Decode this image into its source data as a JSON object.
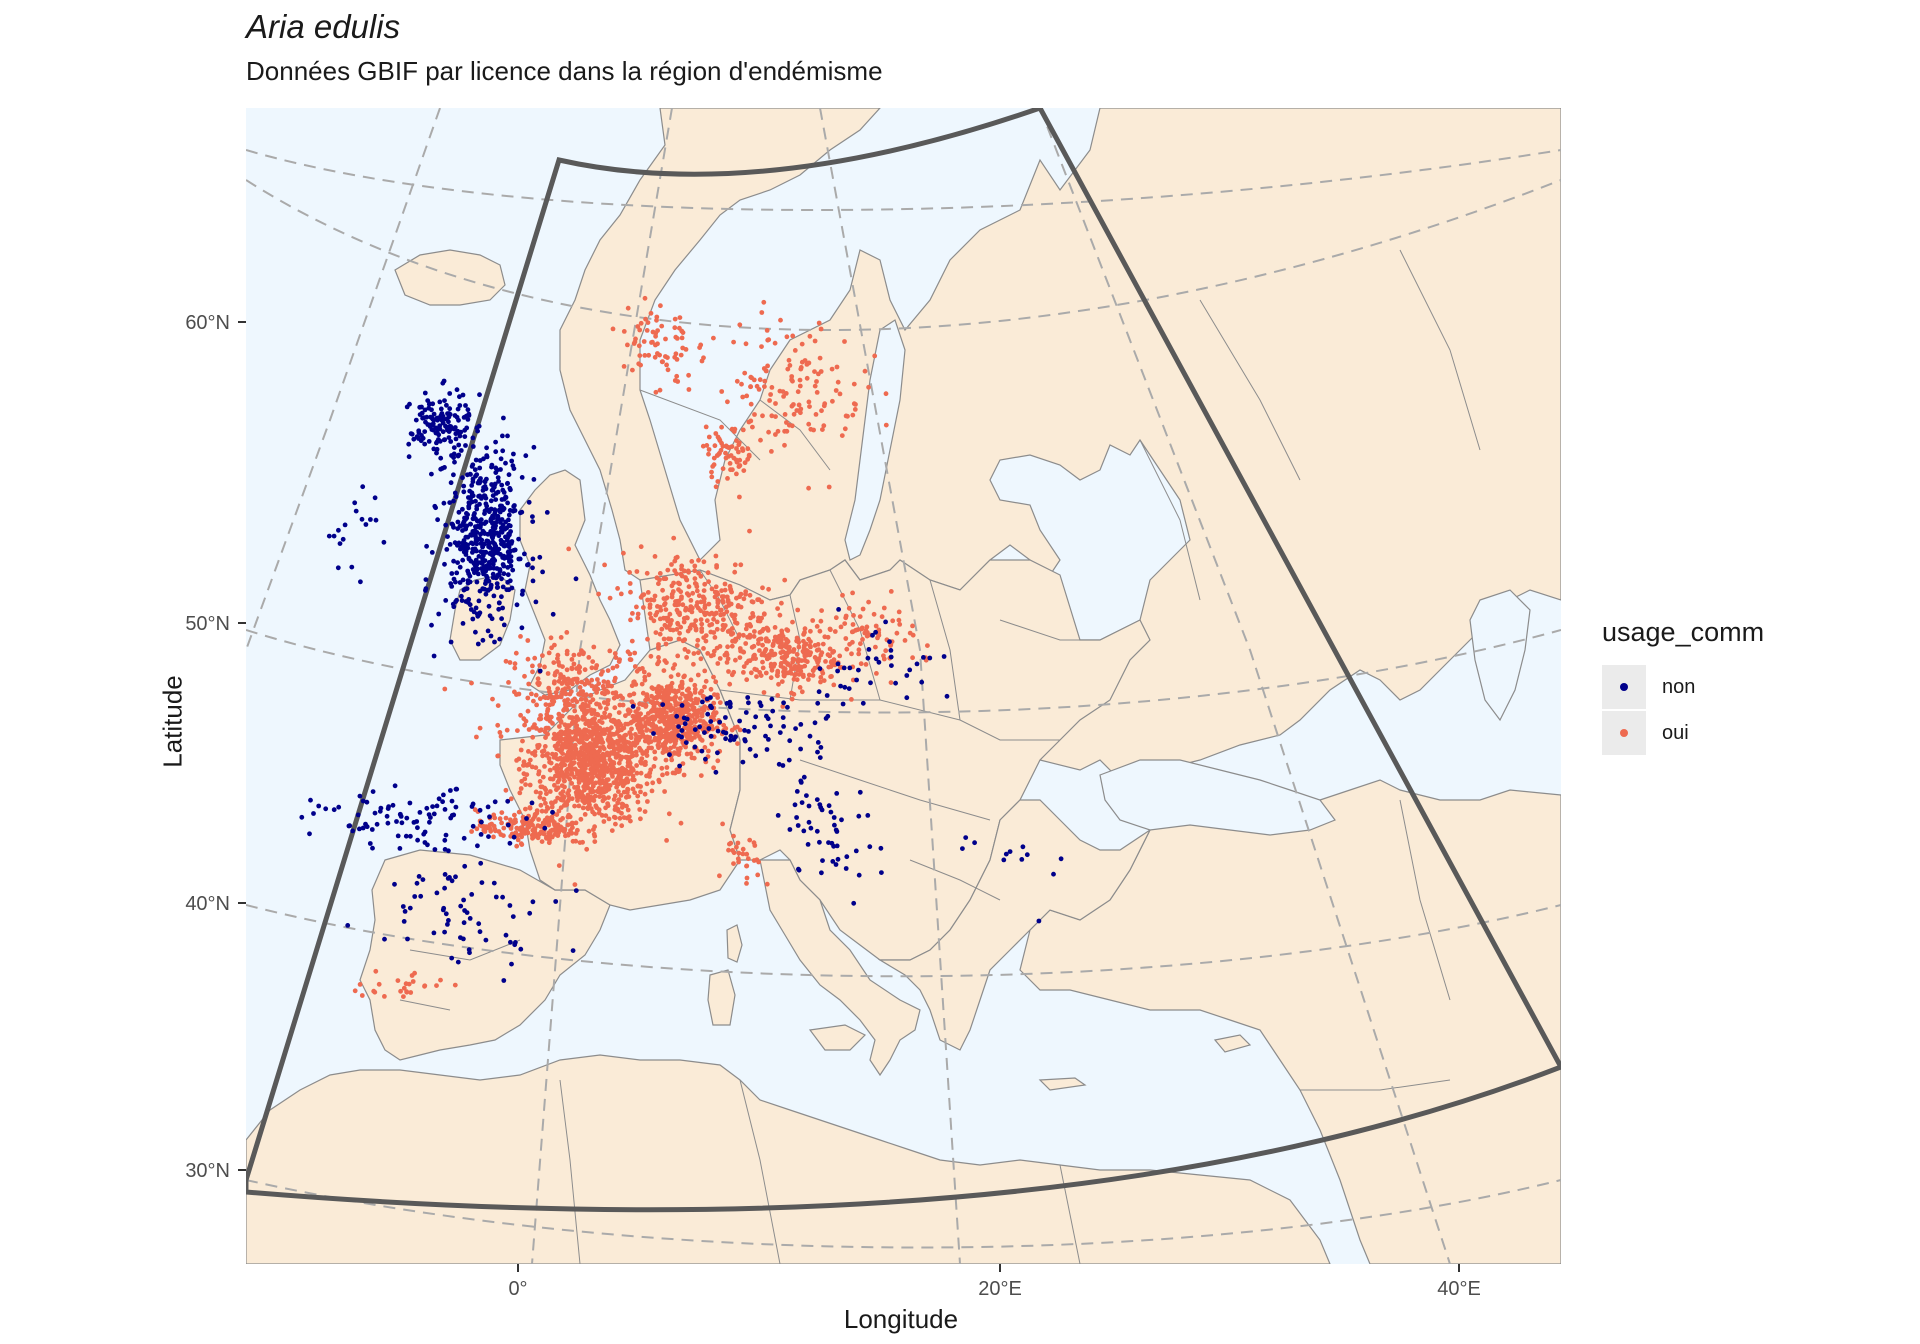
{
  "title": "Aria edulis",
  "subtitle": "Données GBIF par licence dans la région d'endémisme",
  "x_axis": {
    "title": "Longitude",
    "ticks": [
      "0°",
      "20°E",
      "40°E"
    ]
  },
  "y_axis": {
    "title": "Latitude",
    "ticks": [
      "60°N",
      "50°N",
      "40°N",
      "30°N"
    ]
  },
  "legend": {
    "title": "usage_comm",
    "items": [
      {
        "label": "non",
        "color": "#00008b"
      },
      {
        "label": "oui",
        "color": "#ee6a50"
      }
    ]
  },
  "colors": {
    "sea": "#eef7fe",
    "land": "#faebd7",
    "borders": "#8c8c8c",
    "graticule": "#aaaaaa",
    "region_outline": "#595959"
  },
  "chart_data": {
    "type": "scatter",
    "projection": "conic map of Europe / North Africa",
    "lon_range": [
      -10,
      44
    ],
    "lat_range": [
      26,
      70
    ],
    "series": [
      {
        "name": "non",
        "color": "#00008b",
        "clusters": [
          {
            "label": "Great Britain",
            "lon": -1.5,
            "lat": 53.0,
            "n": 520,
            "spread": [
              1.6,
              2.6
            ]
          },
          {
            "label": "Scotland",
            "lon": -3.8,
            "lat": 57.0,
            "n": 140,
            "spread": [
              1.2,
              1.0
            ]
          },
          {
            "label": "Ireland",
            "lon": -7.5,
            "lat": 53.5,
            "n": 18,
            "spread": [
              1.2,
              1.4
            ]
          },
          {
            "label": "North Spain",
            "lon": -4.0,
            "lat": 43.0,
            "n": 90,
            "spread": [
              3.5,
              0.8
            ]
          },
          {
            "label": "Central/East Spain",
            "lon": -2.0,
            "lat": 40.0,
            "n": 70,
            "spread": [
              3.0,
              2.0
            ]
          },
          {
            "label": "Alps",
            "lon": 9.5,
            "lat": 46.3,
            "n": 90,
            "spread": [
              3.5,
              1.0
            ]
          },
          {
            "label": "Apennines",
            "lon": 12.5,
            "lat": 43.0,
            "n": 55,
            "spread": [
              1.5,
              2.0
            ]
          },
          {
            "label": "Austria/Czech",
            "lon": 15.5,
            "lat": 48.5,
            "n": 35,
            "spread": [
              2.5,
              1.4
            ]
          },
          {
            "label": "Balkans",
            "lon": 20.0,
            "lat": 42.0,
            "n": 12,
            "spread": [
              2.0,
              1.5
            ]
          }
        ]
      },
      {
        "name": "oui",
        "color": "#ee6a50",
        "clusters": [
          {
            "label": "France (Massif Central)",
            "lon": 3.0,
            "lat": 45.0,
            "n": 900,
            "spread": [
              2.2,
              1.8
            ]
          },
          {
            "label": "Central France",
            "lon": 2.5,
            "lat": 47.5,
            "n": 260,
            "spread": [
              2.5,
              1.5
            ]
          },
          {
            "label": "Alps/Jura",
            "lon": 6.5,
            "lat": 46.5,
            "n": 520,
            "spread": [
              1.6,
              1.3
            ]
          },
          {
            "label": "Benelux/Germany",
            "lon": 8.0,
            "lat": 50.5,
            "n": 340,
            "spread": [
              2.8,
              1.7
            ]
          },
          {
            "label": "South Germany",
            "lon": 11.5,
            "lat": 48.8,
            "n": 240,
            "spread": [
              2.0,
              1.0
            ]
          },
          {
            "label": "Pyrenees",
            "lon": 0.5,
            "lat": 42.7,
            "n": 180,
            "spread": [
              1.8,
              0.5
            ]
          },
          {
            "label": "Scandinavia south",
            "lon": 13.5,
            "lat": 58.5,
            "n": 140,
            "spread": [
              3.0,
              2.0
            ]
          },
          {
            "label": "Norway coast",
            "lon": 7.0,
            "lat": 60.0,
            "n": 70,
            "spread": [
              1.5,
              1.5
            ]
          },
          {
            "label": "Denmark",
            "lon": 10.0,
            "lat": 56.0,
            "n": 60,
            "spread": [
              1.0,
              0.8
            ]
          },
          {
            "label": "Corsica/Sardinia",
            "lon": 9.0,
            "lat": 41.5,
            "n": 30,
            "spread": [
              0.6,
              1.0
            ]
          },
          {
            "label": "Andalusia",
            "lon": -4.5,
            "lat": 37.0,
            "n": 25,
            "spread": [
              1.5,
              0.5
            ]
          },
          {
            "label": "Czech/Austria",
            "lon": 15.5,
            "lat": 49.5,
            "n": 90,
            "spread": [
              2.5,
              1.0
            ]
          }
        ]
      }
    ]
  }
}
